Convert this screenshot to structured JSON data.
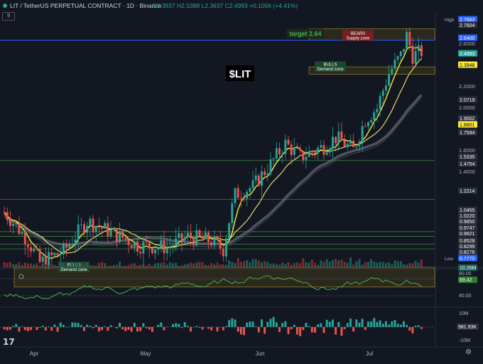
{
  "header": {
    "symbol_line": "LIT / TetherUS PERPETUAL CONTRACT · 1D · Binance",
    "ohlc_line": "O2.3937 H2.5388 L2.3637 C2.4993 +0.1056 (+4.41%)",
    "indicator_count": "9"
  },
  "chart_data": {
    "type": "candlestick",
    "title": "$LIT",
    "ylim": [
      0.7,
      2.8
    ],
    "x_ticks": [
      "Apr",
      "May",
      "Jun",
      "Jul"
    ],
    "price_tags": [
      {
        "label": "High",
        "value": "2.7663",
        "color": "#2962ff"
      },
      {
        "label": "",
        "value": "2.7604",
        "color": "#2a2e39"
      },
      {
        "label": "",
        "value": "2.6400",
        "color": "#2962ff"
      },
      {
        "label": "",
        "value": "2.4993",
        "color": "#26a69a"
      },
      {
        "label": "",
        "value": "2.3948",
        "color": "#ffeb3b"
      },
      {
        "label": "",
        "value": "2.0719",
        "color": "#2a2e39"
      },
      {
        "label": "",
        "value": "1.9002",
        "color": "#2a2e39"
      },
      {
        "label": "",
        "value": "1.8801",
        "color": "#ffeb3b"
      },
      {
        "label": "",
        "value": "1.7594",
        "color": "#2a2e39"
      },
      {
        "label": "",
        "value": "1.5335",
        "color": "#2a2e39"
      },
      {
        "label": "",
        "value": "1.4754",
        "color": "#2a2e39"
      },
      {
        "label": "",
        "value": "1.2214",
        "color": "#2a2e39"
      },
      {
        "label": "",
        "value": "1.0455",
        "color": "#2a2e39"
      },
      {
        "label": "",
        "value": "1.0220",
        "color": "#2a2e39"
      },
      {
        "label": "",
        "value": "0.9850",
        "color": "#2a2e39"
      },
      {
        "label": "",
        "value": "0.9747",
        "color": "#2a2e39"
      },
      {
        "label": "",
        "value": "0.9621",
        "color": "#2a2e39"
      },
      {
        "label": "",
        "value": "0.8528",
        "color": "#2a2e39"
      },
      {
        "label": "",
        "value": "0.8299",
        "color": "#2a2e39"
      },
      {
        "label": "",
        "value": "0.8276",
        "color": "#2a2e39"
      },
      {
        "label": "Low",
        "value": "0.7770",
        "color": "#2962ff"
      }
    ],
    "axis_ticks": [
      "2.6000",
      "2.2000",
      "2.0000",
      "1.6000",
      "1.4000"
    ],
    "zones": [
      {
        "label": "BEARS",
        "sublabel": "Supply zone",
        "y_low": 2.64,
        "y_high": 2.79,
        "from": 103,
        "to": 141
      },
      {
        "label": "BULLS",
        "sublabel": "Demand zone",
        "y_low": 2.24,
        "y_high": 2.32,
        "from": 103,
        "to": 141
      },
      {
        "label": "BULLS",
        "sublabel": "Demand zone",
        "y_low": 0.8,
        "y_high": 0.88,
        "from": 0,
        "to": 141
      }
    ],
    "target": {
      "label": "target 2.64",
      "value": 2.64
    },
    "h_levels": [
      1.4754,
      1.2214,
      1.0455,
      1.022,
      0.985,
      0.9621
    ],
    "volume": {
      "last": "10.26M"
    },
    "rsi": {
      "value": "69.42",
      "ticks": [
        "80.00",
        "40.00"
      ]
    },
    "osc": {
      "value": "981.93K",
      "ticks": [
        "10M",
        "-10M"
      ]
    }
  }
}
